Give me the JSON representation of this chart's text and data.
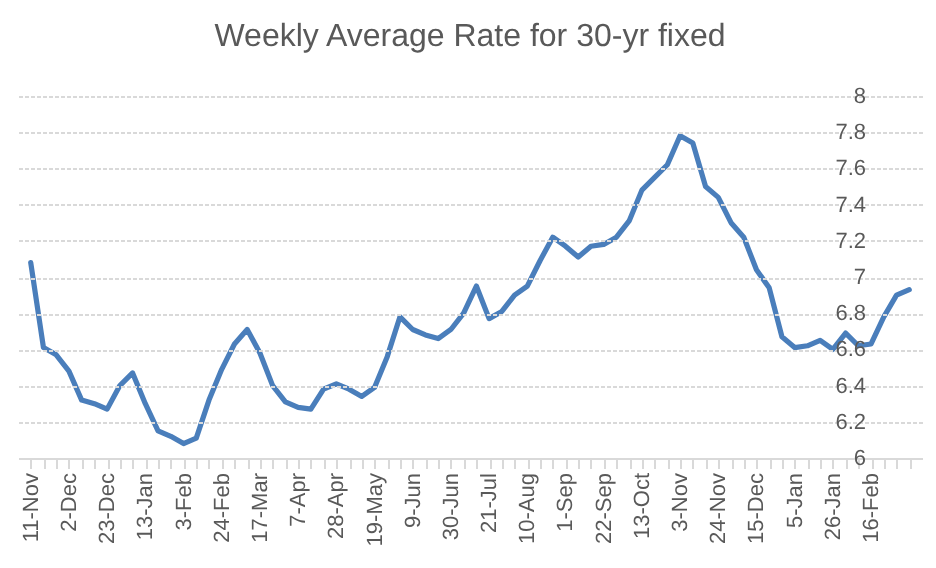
{
  "chart_data": {
    "type": "line",
    "title": "Weekly Average Rate for 30-yr fixed",
    "categories": [
      "11-Nov",
      null,
      null,
      "2-Dec",
      null,
      null,
      "23-Dec",
      null,
      null,
      "13-Jan",
      null,
      null,
      "3-Feb",
      null,
      null,
      "24-Feb",
      null,
      null,
      "17-Mar",
      null,
      null,
      "7-Apr",
      null,
      null,
      "28-Apr",
      null,
      null,
      "19-May",
      null,
      null,
      "9-Jun",
      null,
      null,
      "30-Jun",
      null,
      null,
      "21-Jul",
      null,
      null,
      "10-Aug",
      null,
      null,
      "1-Sep",
      null,
      null,
      "22-Sep",
      null,
      null,
      "13-Oct",
      null,
      null,
      "3-Nov",
      null,
      null,
      "24-Nov",
      null,
      null,
      "15-Dec",
      null,
      null,
      "5-Jan",
      null,
      null,
      "26-Jan",
      null,
      null,
      "16-Feb",
      null,
      null,
      null
    ],
    "series": [
      {
        "color": "#4a7ebb",
        "values": [
          7.08,
          6.61,
          6.57,
          6.48,
          6.32,
          6.3,
          6.27,
          6.4,
          6.47,
          6.3,
          6.15,
          6.12,
          6.08,
          6.11,
          6.32,
          6.49,
          6.63,
          6.71,
          6.58,
          6.4,
          6.31,
          6.28,
          6.27,
          6.38,
          6.41,
          6.38,
          6.34,
          6.39,
          6.56,
          6.78,
          6.71,
          6.68,
          6.66,
          6.71,
          6.8,
          6.95,
          6.77,
          6.81,
          6.9,
          6.95,
          7.09,
          7.22,
          7.17,
          7.11,
          7.17,
          7.18,
          7.22,
          7.31,
          7.48,
          7.55,
          7.62,
          7.78,
          7.74,
          7.5,
          7.44,
          7.3,
          7.22,
          7.04,
          6.94,
          6.67,
          6.61,
          6.62,
          6.65,
          6.6,
          6.69,
          6.62,
          6.63,
          6.78,
          6.9,
          6.93
        ]
      }
    ],
    "ylim": [
      6,
      8
    ],
    "yticks": [
      6,
      6.2,
      6.4,
      6.6,
      6.8,
      7,
      7.2,
      7.4,
      7.6,
      7.8,
      8
    ],
    "grid": "y"
  }
}
